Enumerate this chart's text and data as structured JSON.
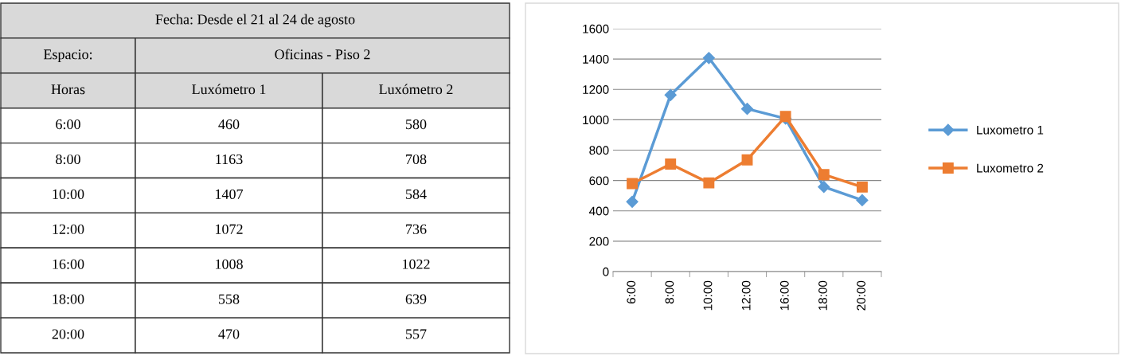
{
  "chart_data": [
    {
      "type": "other",
      "data_labels": true,
      "title": "Fecha: Desde el 21 al 24 de agosto",
      "annotations": [
        "Espacio:",
        "Oficinas - Piso 2",
        "Horas"
      ],
      "categories": [
        "6:00",
        "8:00",
        "10:00",
        "12:00",
        "16:00",
        "18:00",
        "20:00"
      ],
      "series": [
        {
          "name": "Luxómetro 1",
          "values": [
            460,
            1163,
            1407,
            1072,
            1008,
            558,
            470
          ]
        },
        {
          "name": "Luxómetro 2",
          "values": [
            580,
            708,
            584,
            736,
            1022,
            639,
            557
          ]
        }
      ]
    },
    {
      "type": "line",
      "categories": [
        "6:00",
        "8:00",
        "10:00",
        "12:00",
        "16:00",
        "18:00",
        "20:00"
      ],
      "series": [
        {
          "name": "Luxometro 1",
          "color": "#5b9bd5",
          "marker": "diamond",
          "values": [
            460,
            1163,
            1407,
            1072,
            1008,
            558,
            470
          ]
        },
        {
          "name": "Luxometro 2",
          "color": "#ed7d31",
          "marker": "square",
          "values": [
            580,
            708,
            584,
            736,
            1022,
            639,
            557
          ]
        }
      ],
      "ylim": [
        0,
        1600
      ],
      "yticks": [
        0,
        200,
        400,
        600,
        800,
        1000,
        1200,
        1400,
        1600
      ],
      "grid": "y",
      "legend": "right"
    }
  ]
}
